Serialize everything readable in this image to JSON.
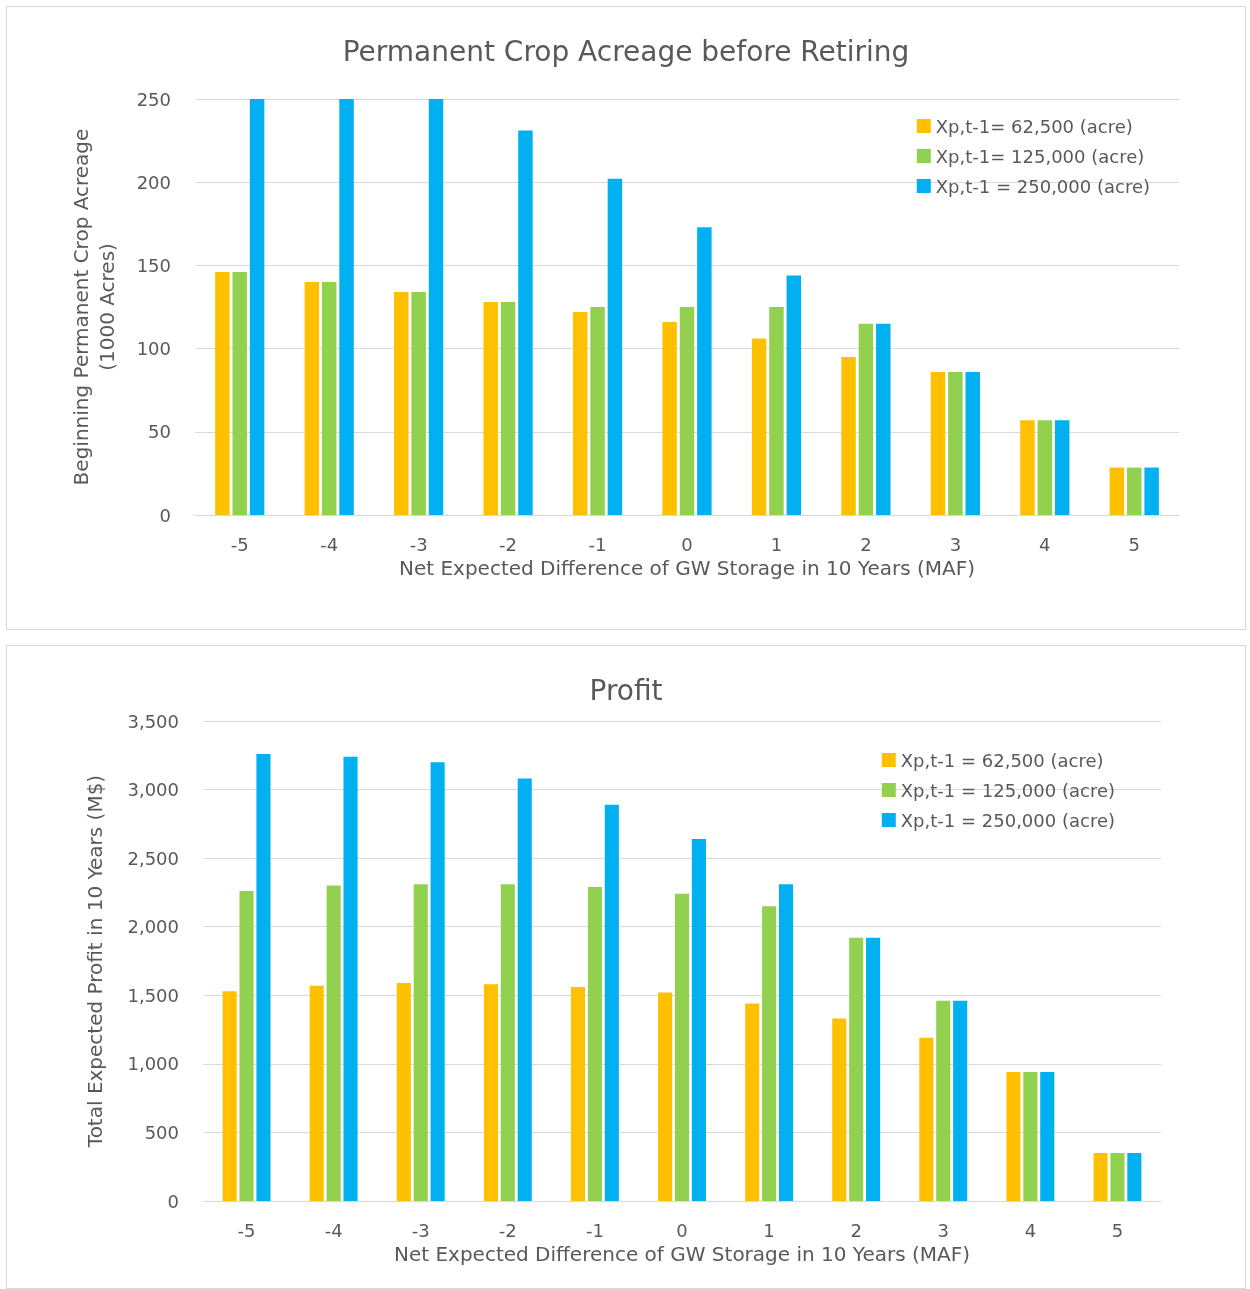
{
  "chart_data": [
    {
      "type": "bar",
      "title": "Permanent Crop Acreage before Retiring",
      "xlabel": "Net Expected Difference of GW Storage in 10 Years (MAF)",
      "ylabel": "Beginning Permanent Crop Acreage\n(1000 Acres)",
      "categories": [
        "-5",
        "-4",
        "-3",
        "-2",
        "-1",
        "0",
        "1",
        "2",
        "3",
        "4",
        "5"
      ],
      "series": [
        {
          "name": "Xp,t-1= 62,500 (acre)",
          "color": "#ffc000",
          "values": [
            146,
            140,
            134,
            128,
            122,
            116,
            106,
            95,
            86,
            57,
            28.5
          ]
        },
        {
          "name": "Xp,t-1= 125,000 (acre)",
          "color": "#92d050",
          "values": [
            146,
            140,
            134,
            128,
            125,
            125,
            125,
            115,
            86,
            57,
            28.5
          ]
        },
        {
          "name": "Xp,t-1 = 250,000 (acre)",
          "color": "#00b0f0",
          "values": [
            250,
            250,
            250,
            231,
            202,
            173,
            144,
            115,
            86,
            57,
            28.5
          ]
        }
      ],
      "ylim": [
        0,
        250
      ],
      "yticks": [
        0,
        50,
        100,
        150,
        200,
        250
      ],
      "grid": "y",
      "legend": "top right"
    },
    {
      "type": "bar",
      "title": "Profit",
      "xlabel": "Net Expected Difference of GW Storage in 10 Years (MAF)",
      "ylabel": "Total Expected Profit in 10 Years (M$)",
      "categories": [
        "-5",
        "-4",
        "-3",
        "-2",
        "-1",
        "0",
        "1",
        "2",
        "3",
        "4",
        "5"
      ],
      "series": [
        {
          "name": "Xp,t-1 = 62,500 (acre)",
          "color": "#ffc000",
          "values": [
            1530,
            1570,
            1590,
            1580,
            1560,
            1520,
            1440,
            1330,
            1190,
            940,
            350
          ]
        },
        {
          "name": "Xp,t-1 = 125,000 (acre)",
          "color": "#92d050",
          "values": [
            2260,
            2300,
            2310,
            2310,
            2290,
            2240,
            2150,
            1920,
            1460,
            940,
            350
          ]
        },
        {
          "name": "Xp,t-1 = 250,000 (acre)",
          "color": "#00b0f0",
          "values": [
            3260,
            3240,
            3200,
            3080,
            2890,
            2640,
            2310,
            1920,
            1460,
            940,
            350
          ]
        }
      ],
      "ylim": [
        0,
        3500
      ],
      "yticks": [
        0,
        500,
        {
          "value": 1000,
          "label": "1,000"
        },
        {
          "value": 1500,
          "label": "1,500"
        },
        {
          "value": 2000,
          "label": "2,000"
        },
        {
          "value": 2500,
          "label": "2,500"
        },
        {
          "value": 3000,
          "label": "3,000"
        },
        {
          "value": 3500,
          "label": "3,500"
        }
      ],
      "grid": "y",
      "legend": "top right"
    }
  ]
}
